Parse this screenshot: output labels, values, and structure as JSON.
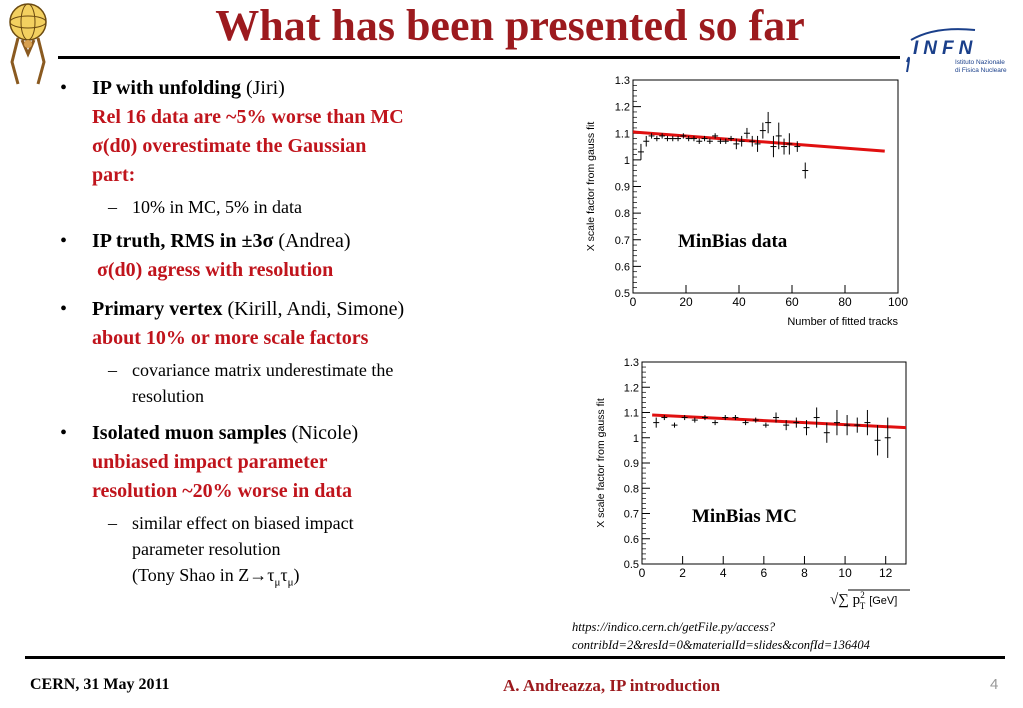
{
  "title": "What has been presented so far",
  "bullets": [
    {
      "head_bold": "IP with unfolding",
      "head_plain": " (Jiri)",
      "red_lines": [
        "Rel 16 data are ~5% worse than MC",
        "σ(d0) overestimate the Gaussian",
        "part:"
      ],
      "subs": [
        "10% in MC,  5% in data"
      ]
    },
    {
      "head_bold": "IP truth, RMS in ±3σ",
      "head_plain": " (Andrea)",
      "red_lines": [
        "σ(d0) agress with resolution"
      ],
      "subs": []
    },
    {
      "head_bold": "Primary vertex",
      "head_plain": " (Kirill, Andi, Simone)",
      "red_lines": [
        "about 10% or more scale factors"
      ],
      "subs": [
        "covariance matrix underestimate the",
        "resolution"
      ]
    },
    {
      "head_bold": "Isolated muon samples",
      "head_plain": " (Nicole)",
      "red_lines": [
        "unbiased impact parameter",
        "resolution ~20% worse in data"
      ],
      "subs": [
        "similar effect on biased impact",
        "parameter resolution",
        "(Tony Shao in Z→τ",
        "μ",
        "τ",
        "μ",
        ")"
      ]
    }
  ],
  "logo_right": {
    "text": "INFN",
    "sub1": "Istituto Nazionale",
    "sub2": "di Fisica Nucleare"
  },
  "chart_data": [
    {
      "type": "scatter",
      "label": "MinBias data",
      "xlabel": "Number of fitted tracks",
      "ylabel": "X scale factor from gauss fit",
      "xlim": [
        0,
        100
      ],
      "ylim": [
        0.5,
        1.3
      ],
      "xticks": [
        "0",
        "20",
        "40",
        "60",
        "80",
        "100"
      ],
      "yticks": [
        "0.5",
        "0.6",
        "0.7",
        "0.8",
        "0.9",
        "1",
        "1.1",
        "1.2",
        "1.3"
      ],
      "fit_line": {
        "x": [
          0,
          95
        ],
        "y": [
          1.105,
          1.033
        ],
        "color": "#e01010"
      },
      "points": {
        "x": [
          3,
          5,
          7,
          9,
          11,
          13,
          15,
          17,
          19,
          21,
          23,
          25,
          27,
          29,
          31,
          33,
          35,
          37,
          39,
          41,
          43,
          45,
          47,
          49,
          51,
          53,
          55,
          57,
          59,
          62,
          65
        ],
        "y": [
          1.03,
          1.07,
          1.09,
          1.08,
          1.09,
          1.08,
          1.08,
          1.08,
          1.09,
          1.08,
          1.08,
          1.07,
          1.08,
          1.07,
          1.09,
          1.07,
          1.07,
          1.08,
          1.06,
          1.07,
          1.1,
          1.07,
          1.06,
          1.11,
          1.14,
          1.05,
          1.09,
          1.05,
          1.06,
          1.05,
          0.96
        ],
        "err": [
          0.03,
          0.02,
          0.01,
          0.01,
          0.01,
          0.01,
          0.01,
          0.01,
          0.01,
          0.01,
          0.01,
          0.01,
          0.01,
          0.01,
          0.01,
          0.01,
          0.01,
          0.01,
          0.02,
          0.02,
          0.02,
          0.02,
          0.03,
          0.03,
          0.04,
          0.04,
          0.05,
          0.03,
          0.04,
          0.02,
          0.03
        ]
      }
    },
    {
      "type": "scatter",
      "label": "MinBias MC",
      "xlabel": "",
      "ylabel": "X scale factor from gauss fit",
      "xlim": [
        0,
        13
      ],
      "ylim": [
        0.5,
        1.3
      ],
      "xticks": [
        "0",
        "2",
        "4",
        "6",
        "8",
        "10",
        "12"
      ],
      "yticks": [
        "0.5",
        "0.6",
        "0.7",
        "0.8",
        "0.9",
        "1",
        "1.1",
        "1.2",
        "1.3"
      ],
      "fit_line": {
        "x": [
          0.5,
          13
        ],
        "y": [
          1.09,
          1.04
        ],
        "color": "#e01010"
      },
      "points": {
        "x": [
          0.7,
          1.1,
          1.6,
          2.1,
          2.6,
          3.1,
          3.6,
          4.1,
          4.6,
          5.1,
          5.6,
          6.1,
          6.6,
          7.1,
          7.6,
          8.1,
          8.6,
          9.1,
          9.6,
          10.1,
          10.6,
          11.1,
          11.6,
          12.1
        ],
        "y": [
          1.06,
          1.08,
          1.05,
          1.08,
          1.07,
          1.08,
          1.06,
          1.08,
          1.08,
          1.06,
          1.07,
          1.05,
          1.08,
          1.05,
          1.06,
          1.04,
          1.08,
          1.02,
          1.06,
          1.05,
          1.05,
          1.06,
          0.99,
          1.0
        ],
        "err": [
          0.02,
          0.01,
          0.01,
          0.01,
          0.01,
          0.01,
          0.01,
          0.01,
          0.01,
          0.01,
          0.01,
          0.01,
          0.02,
          0.02,
          0.02,
          0.03,
          0.04,
          0.04,
          0.05,
          0.04,
          0.03,
          0.05,
          0.06,
          0.08
        ]
      }
    }
  ],
  "xlabel_mc_parts": {
    "pre": "√∑ p",
    "sup": "2",
    "sub": "T",
    "unit": "[GeV]"
  },
  "source": "https://indico.cern.ch/getFile.py/access?contribId=2&resId=0&materialId=slides&confId=136404",
  "footer": {
    "left": "CERN, 31 May 2011",
    "middle": "A. Andreazza, IP introduction",
    "page": "4"
  }
}
